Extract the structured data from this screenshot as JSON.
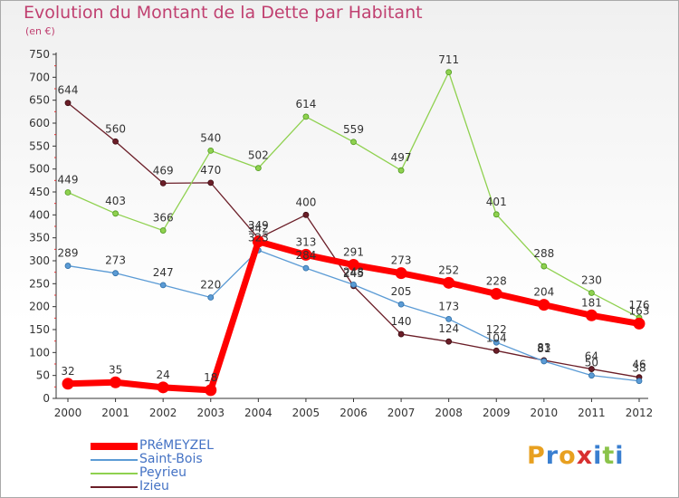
{
  "header": {
    "title": "Evolution du Montant de la Dette par Habitant",
    "subtitle": "(en €)"
  },
  "logo": {
    "text": "Proxiti"
  },
  "chart_data": {
    "type": "line",
    "title": "Evolution du Montant de la Dette par Habitant",
    "subtitle": "(en €)",
    "xlabel": "",
    "ylabel": "",
    "x": [
      "2000",
      "2001",
      "2002",
      "2003",
      "2004",
      "2005",
      "2006",
      "2007",
      "2008",
      "2009",
      "2010",
      "2011",
      "2012"
    ],
    "ylim": [
      0,
      750
    ],
    "yticks": [
      0,
      50,
      100,
      150,
      200,
      250,
      300,
      350,
      400,
      450,
      500,
      550,
      600,
      650,
      700,
      750
    ],
    "grid": false,
    "legend_position": "bottom-left",
    "series": [
      {
        "name": "PRéMEYZEL",
        "color": "#ff0000",
        "values": [
          32,
          35,
          24,
          18,
          342,
          313,
          291,
          273,
          252,
          228,
          204,
          181,
          163
        ]
      },
      {
        "name": "Saint-Bois",
        "color": "#5b9bd5",
        "values": [
          289,
          273,
          247,
          220,
          323,
          284,
          248,
          205,
          173,
          122,
          81,
          50,
          38
        ]
      },
      {
        "name": "Peyrieu",
        "color": "#8fd14f",
        "values": [
          449,
          403,
          366,
          540,
          502,
          614,
          559,
          497,
          711,
          401,
          288,
          230,
          176
        ]
      },
      {
        "name": "Izieu",
        "color": "#6b1e28",
        "values": [
          644,
          560,
          469,
          470,
          349,
          400,
          245,
          140,
          124,
          104,
          83,
          64,
          46
        ]
      }
    ]
  }
}
